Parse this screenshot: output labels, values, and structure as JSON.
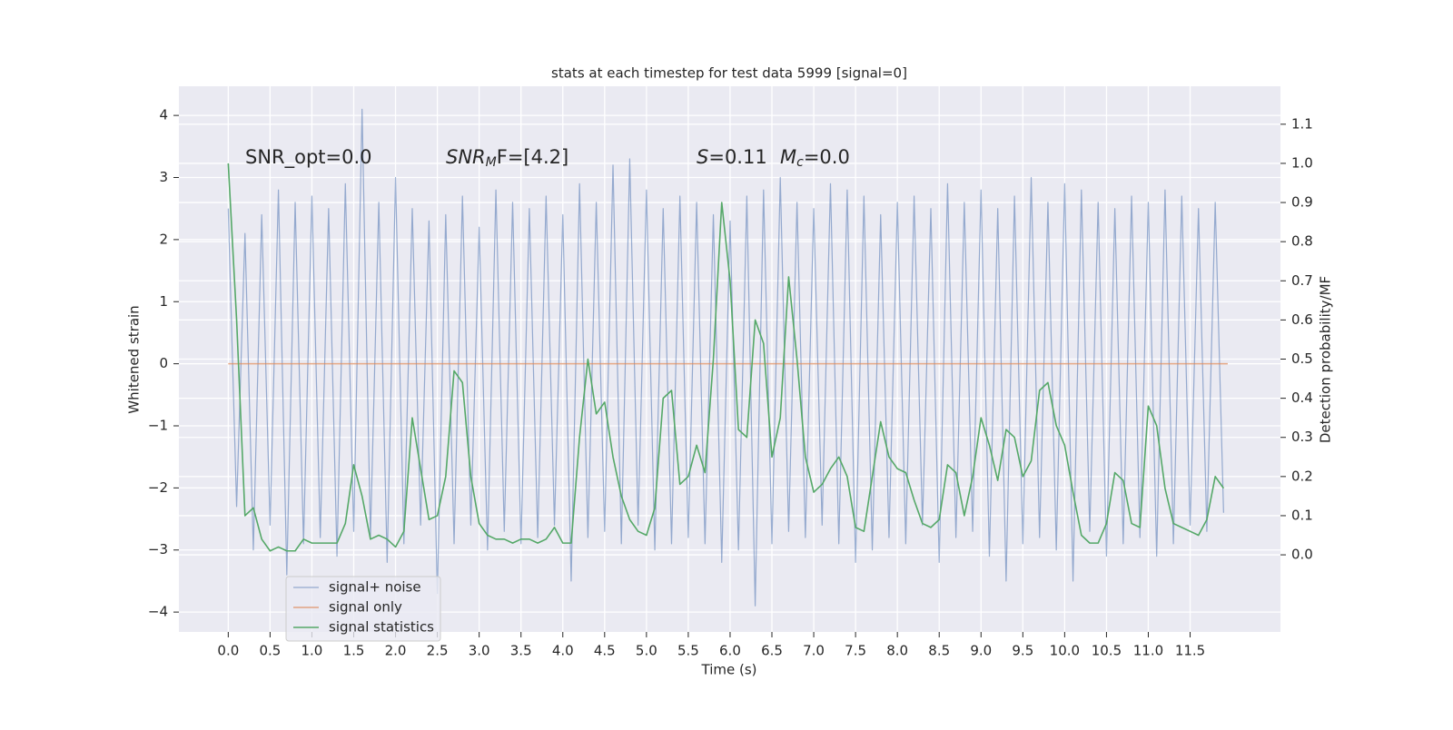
{
  "chart_data": {
    "type": "line",
    "title": "stats at each timestep for test data 5999 [signal=0]",
    "xlabel": "Time (s)",
    "ylabel": "Whitened strain",
    "y2label": "Detection probability/MF",
    "annotations": [
      {
        "text": "SNR_opt=0.0"
      },
      {
        "symbol": "SNR",
        "sub": "M",
        "rest": "F=[4.2]"
      },
      {
        "symbol": "S",
        "rest": "=0.11"
      },
      {
        "symbol": "M",
        "sub": "c",
        "rest": "=0.0"
      }
    ],
    "grid": true,
    "legend": "lower left",
    "xlim": [
      -0.59,
      12.58
    ],
    "ylim": [
      -4.32,
      4.47
    ],
    "y2lim": [
      -0.197,
      1.197
    ],
    "xticks": [
      {
        "value": 0,
        "label": "0.0"
      },
      {
        "value": 0.5,
        "label": "0.5"
      },
      {
        "value": 1,
        "label": "1.0"
      },
      {
        "value": 1.5,
        "label": "1.5"
      },
      {
        "value": 2,
        "label": "2.0"
      },
      {
        "value": 2.5,
        "label": "2.5"
      },
      {
        "value": 3,
        "label": "3.0"
      },
      {
        "value": 3.5,
        "label": "3.5"
      },
      {
        "value": 4,
        "label": "4.0"
      },
      {
        "value": 4.5,
        "label": "4.5"
      },
      {
        "value": 5,
        "label": "5.0"
      },
      {
        "value": 5.5,
        "label": "5.5"
      },
      {
        "value": 6,
        "label": "6.0"
      },
      {
        "value": 6.5,
        "label": "6.5"
      },
      {
        "value": 7,
        "label": "7.0"
      },
      {
        "value": 7.5,
        "label": "7.5"
      },
      {
        "value": 8,
        "label": "8.0"
      },
      {
        "value": 8.5,
        "label": "8.5"
      },
      {
        "value": 9,
        "label": "9.0"
      },
      {
        "value": 9.5,
        "label": "9.5"
      },
      {
        "value": 10,
        "label": "10.0"
      },
      {
        "value": 10.5,
        "label": "10.5"
      },
      {
        "value": 11,
        "label": "11.0"
      },
      {
        "value": 11.5,
        "label": "11.5"
      }
    ],
    "yticks": [
      {
        "value": -4,
        "label": "−4"
      },
      {
        "value": -3,
        "label": "−3"
      },
      {
        "value": -2,
        "label": "−2"
      },
      {
        "value": -1,
        "label": "−1"
      },
      0,
      1,
      2,
      3,
      4
    ],
    "y2ticks": [
      {
        "value": 0,
        "label": "0.0"
      },
      {
        "value": 0.1,
        "label": "0.1"
      },
      {
        "value": 0.2,
        "label": "0.2"
      },
      {
        "value": 0.3,
        "label": "0.3"
      },
      {
        "value": 0.4,
        "label": "0.4"
      },
      {
        "value": 0.5,
        "label": "0.5"
      },
      {
        "value": 0.6,
        "label": "0.6"
      },
      {
        "value": 0.7,
        "label": "0.7"
      },
      {
        "value": 0.8,
        "label": "0.8"
      },
      {
        "value": 0.9,
        "label": "0.9"
      },
      {
        "value": 1,
        "label": "1.0"
      },
      {
        "value": 1.1,
        "label": "1.1"
      }
    ],
    "x": [
      0.0,
      0.1,
      0.2,
      0.3,
      0.4,
      0.5,
      0.6,
      0.7,
      0.8,
      0.9,
      1.0,
      1.1,
      1.2,
      1.3,
      1.4,
      1.5,
      1.6,
      1.7,
      1.8,
      1.9,
      2.0,
      2.1,
      2.2,
      2.3,
      2.4,
      2.5,
      2.6,
      2.7,
      2.8,
      2.9,
      3.0,
      3.1,
      3.2,
      3.3,
      3.4,
      3.5,
      3.6,
      3.7,
      3.8,
      3.9,
      4.0,
      4.1,
      4.2,
      4.3,
      4.4,
      4.5,
      4.6,
      4.7,
      4.8,
      4.9,
      5.0,
      5.1,
      5.2,
      5.3,
      5.4,
      5.5,
      5.6,
      5.7,
      5.8,
      5.9,
      6.0,
      6.1,
      6.2,
      6.3,
      6.4,
      6.5,
      6.6,
      6.7,
      6.8,
      6.9,
      7.0,
      7.1,
      7.2,
      7.3,
      7.4,
      7.5,
      7.6,
      7.7,
      7.8,
      7.9,
      8.0,
      8.1,
      8.2,
      8.3,
      8.4,
      8.5,
      8.6,
      8.7,
      8.8,
      8.9,
      9.0,
      9.1,
      9.2,
      9.3,
      9.4,
      9.5,
      9.6,
      9.7,
      9.8,
      9.9,
      10.0,
      10.1,
      10.2,
      10.3,
      10.4,
      10.5,
      10.6,
      10.7,
      10.8,
      10.9,
      11.0,
      11.1,
      11.2,
      11.3,
      11.4,
      11.5,
      11.6,
      11.7,
      11.8,
      11.9
    ],
    "series": [
      {
        "name": "signal+ noise",
        "color": "#4c72b0",
        "values": [
          2.5,
          -2.3,
          2.1,
          -3.0,
          2.4,
          -2.6,
          2.8,
          -3.4,
          2.6,
          -2.9,
          2.7,
          -2.8,
          2.5,
          -3.1,
          2.9,
          -2.7,
          4.1,
          -2.8,
          2.6,
          -3.2,
          3.0,
          -2.9,
          2.5,
          -2.6,
          2.3,
          -3.7,
          2.4,
          -2.9,
          2.7,
          -2.6,
          2.2,
          -3.0,
          2.8,
          -2.7,
          2.6,
          -2.9,
          2.5,
          -2.8,
          2.7,
          -2.6,
          2.4,
          -3.5,
          2.9,
          -2.8,
          2.6,
          -2.7,
          3.2,
          -2.9,
          3.3,
          -2.6,
          2.8,
          -3.0,
          2.5,
          -2.9,
          2.7,
          -2.8,
          2.6,
          -2.9,
          2.4,
          -3.2,
          2.3,
          -3.0,
          2.7,
          -3.9,
          2.8,
          -2.9,
          3.0,
          -2.7,
          2.6,
          -2.8,
          2.5,
          -2.6,
          2.9,
          -2.9,
          2.8,
          -3.2,
          2.7,
          -3.0,
          2.4,
          -2.8,
          2.6,
          -2.9,
          2.7,
          -2.6,
          2.5,
          -3.2,
          2.9,
          -2.8,
          2.6,
          -2.7,
          2.8,
          -3.1,
          2.5,
          -3.5,
          2.7,
          -2.9,
          3.0,
          -2.8,
          2.6,
          -3.0,
          2.9,
          -3.5,
          2.8,
          -2.7,
          2.6,
          -3.1,
          2.5,
          -2.9,
          2.7,
          -2.8,
          2.6,
          -3.1,
          2.8,
          -2.9,
          2.7,
          -2.6,
          2.5,
          -2.7,
          2.6,
          -2.4
        ]
      },
      {
        "name": "signal only",
        "color": "#dd8452",
        "x": [
          0,
          11.95
        ],
        "values": [
          0,
          0
        ]
      },
      {
        "name": "signal statistics",
        "color": "#55a868",
        "axis": "y2",
        "values": [
          1.0,
          0.6,
          0.1,
          0.12,
          0.04,
          0.01,
          0.02,
          0.01,
          0.01,
          0.04,
          0.03,
          0.03,
          0.03,
          0.03,
          0.08,
          0.23,
          0.15,
          0.04,
          0.05,
          0.04,
          0.02,
          0.06,
          0.35,
          0.22,
          0.09,
          0.1,
          0.2,
          0.47,
          0.44,
          0.2,
          0.08,
          0.05,
          0.04,
          0.04,
          0.03,
          0.04,
          0.04,
          0.03,
          0.04,
          0.07,
          0.03,
          0.03,
          0.3,
          0.5,
          0.36,
          0.39,
          0.25,
          0.15,
          0.09,
          0.06,
          0.05,
          0.12,
          0.4,
          0.42,
          0.18,
          0.2,
          0.28,
          0.21,
          0.5,
          0.9,
          0.7,
          0.32,
          0.3,
          0.6,
          0.54,
          0.25,
          0.35,
          0.71,
          0.5,
          0.25,
          0.16,
          0.18,
          0.22,
          0.25,
          0.2,
          0.07,
          0.06,
          0.2,
          0.34,
          0.25,
          0.22,
          0.21,
          0.14,
          0.08,
          0.07,
          0.09,
          0.23,
          0.21,
          0.1,
          0.2,
          0.35,
          0.28,
          0.19,
          0.32,
          0.3,
          0.2,
          0.24,
          0.42,
          0.44,
          0.33,
          0.28,
          0.16,
          0.05,
          0.03,
          0.03,
          0.08,
          0.21,
          0.19,
          0.08,
          0.07,
          0.38,
          0.33,
          0.17,
          0.08,
          0.07,
          0.06,
          0.05,
          0.09,
          0.2,
          0.17
        ]
      }
    ]
  }
}
